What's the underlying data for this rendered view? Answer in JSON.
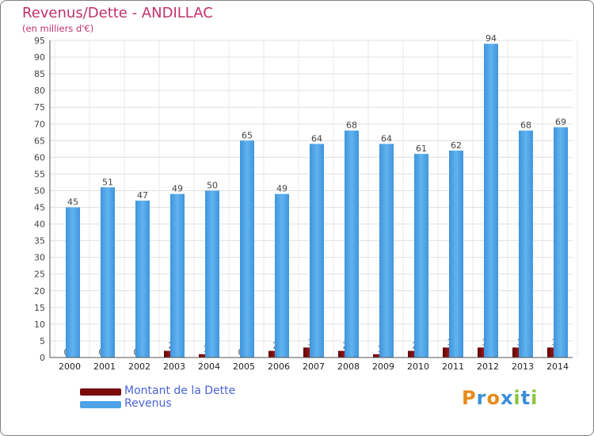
{
  "header": {
    "title": "Revenus/Dette - ANDILLAC",
    "subtitle": "(en milliers d'€)"
  },
  "legend": [
    {
      "label": "Montant de la Dette",
      "color": "#7a0a0a"
    },
    {
      "label": "Revenus",
      "color": "#4da3e6"
    }
  ],
  "logo": {
    "text": "Proxiti"
  },
  "chart_data": {
    "type": "bar",
    "title": "Revenus/Dette - ANDILLAC",
    "subtitle": "(en milliers d'€)",
    "xlabel": "",
    "ylabel": "",
    "ylim": [
      0,
      95
    ],
    "ytick_step": 5,
    "grid": true,
    "categories": [
      "2000",
      "2001",
      "2002",
      "2003",
      "2004",
      "2005",
      "2006",
      "2007",
      "2008",
      "2009",
      "2010",
      "2011",
      "2012",
      "2013",
      "2014"
    ],
    "series": [
      {
        "name": "Montant de la Dette",
        "color": "#7a0a0a",
        "values": [
          0,
          0,
          0,
          2,
          1,
          0,
          2,
          3,
          2,
          1,
          2,
          3,
          3,
          3,
          3
        ]
      },
      {
        "name": "Revenus",
        "color": "#4da3e6",
        "values": [
          45,
          51,
          47,
          49,
          50,
          65,
          49,
          64,
          68,
          64,
          61,
          62,
          94,
          68,
          69
        ]
      }
    ]
  }
}
